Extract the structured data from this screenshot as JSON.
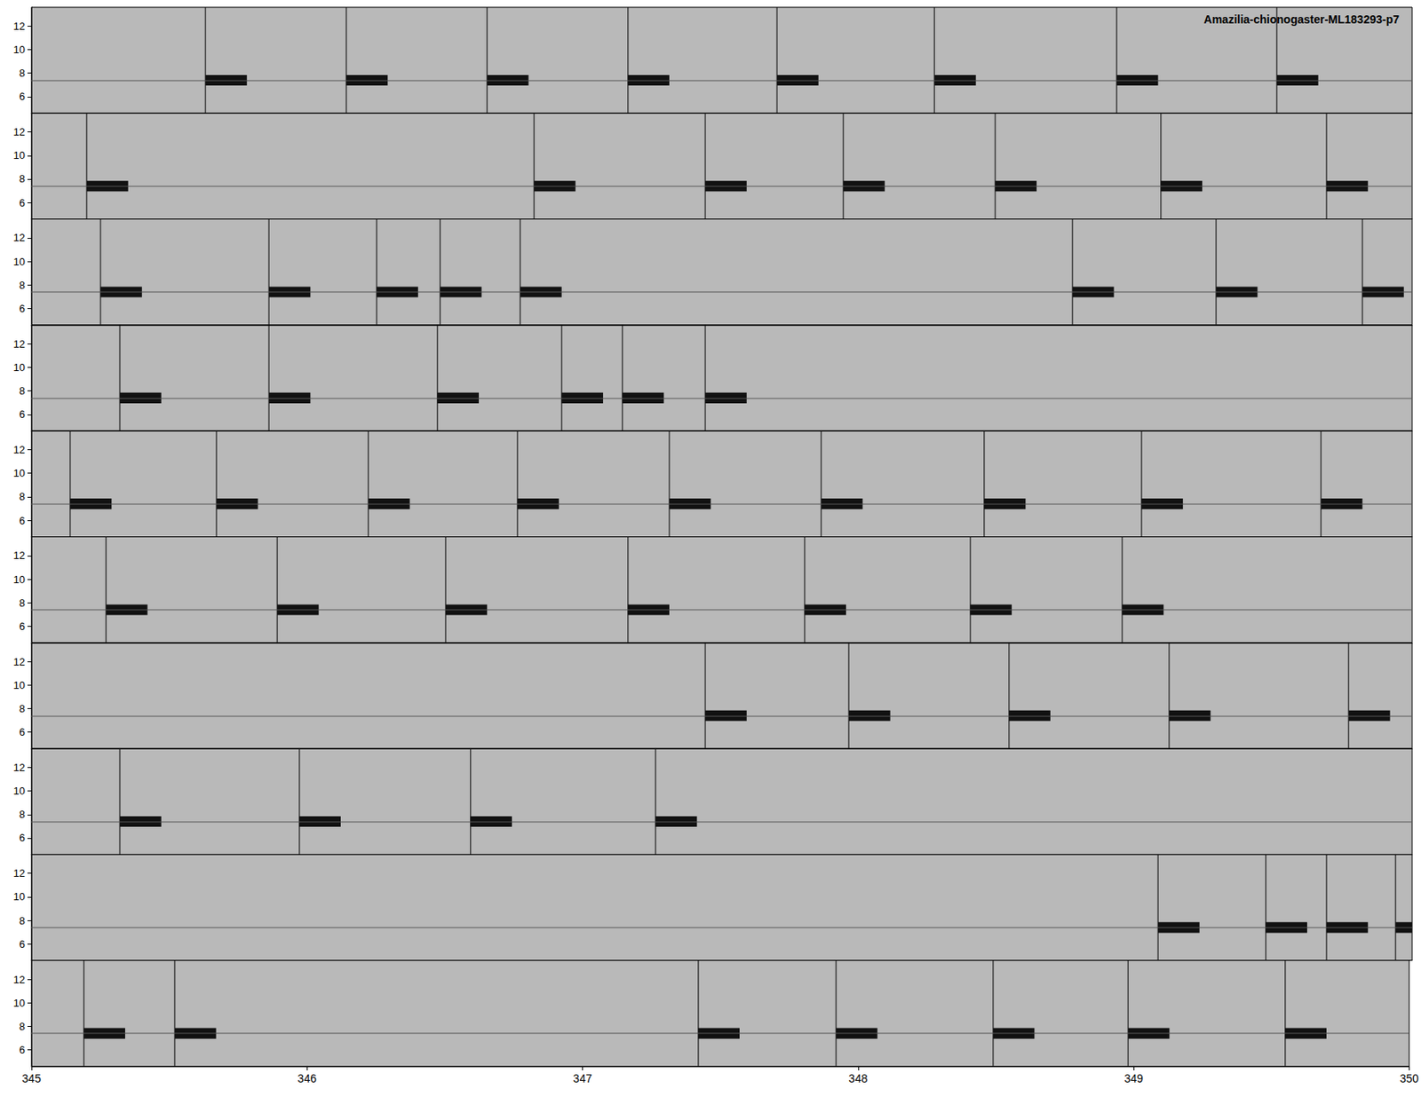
{
  "chart_data": {
    "type": "spectrogram",
    "title": "Amazilia-chionogaster-ML183293-p7",
    "xlim": [
      345,
      350
    ],
    "xticks": [
      345,
      346,
      347,
      348,
      349,
      350
    ],
    "ylim": [
      4.6,
      13.6
    ],
    "yticks": [
      6,
      8,
      10,
      12
    ],
    "note_freq": 7.4,
    "note_duration": 0.15,
    "color": "#111111",
    "panels": [
      {
        "notes": [
          345.63,
          346.14,
          346.65,
          347.16,
          347.7,
          348.27,
          348.93,
          349.51
        ]
      },
      {
        "notes": [
          345.2,
          346.82,
          347.44,
          347.94,
          348.49,
          349.09,
          349.69
        ]
      },
      {
        "notes": [
          345.25,
          345.86,
          346.25,
          346.48,
          346.77,
          348.77,
          349.29,
          349.82
        ]
      },
      {
        "notes": [
          345.32,
          345.86,
          346.47,
          346.92,
          347.14,
          347.44
        ]
      },
      {
        "notes": [
          345.14,
          345.67,
          346.22,
          346.76,
          347.31,
          347.86,
          348.45,
          349.02,
          349.67
        ]
      },
      {
        "notes": [
          345.27,
          345.89,
          346.5,
          347.16,
          347.8,
          348.4,
          348.95
        ]
      },
      {
        "notes": [
          347.44,
          347.96,
          348.54,
          349.12,
          349.77
        ]
      },
      {
        "notes": [
          345.32,
          345.97,
          346.59,
          347.26
        ]
      },
      {
        "notes": [
          349.08,
          349.47,
          349.69,
          349.94
        ]
      },
      {
        "notes": [
          345.19,
          345.52,
          347.42,
          347.92,
          348.49,
          348.98,
          349.55
        ]
      }
    ]
  }
}
